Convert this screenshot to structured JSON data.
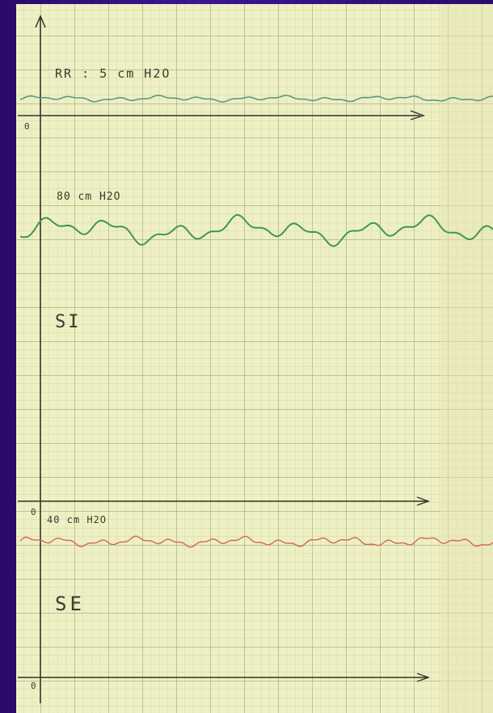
{
  "traces": [
    {
      "label": "RR : 5 cm H2O"
    },
    {
      "label": "80 cm H2O",
      "name": "SI"
    },
    {
      "label": "40 cm H2O",
      "name": "SE"
    }
  ],
  "axis_labels": [
    "0",
    "0",
    "0"
  ]
}
